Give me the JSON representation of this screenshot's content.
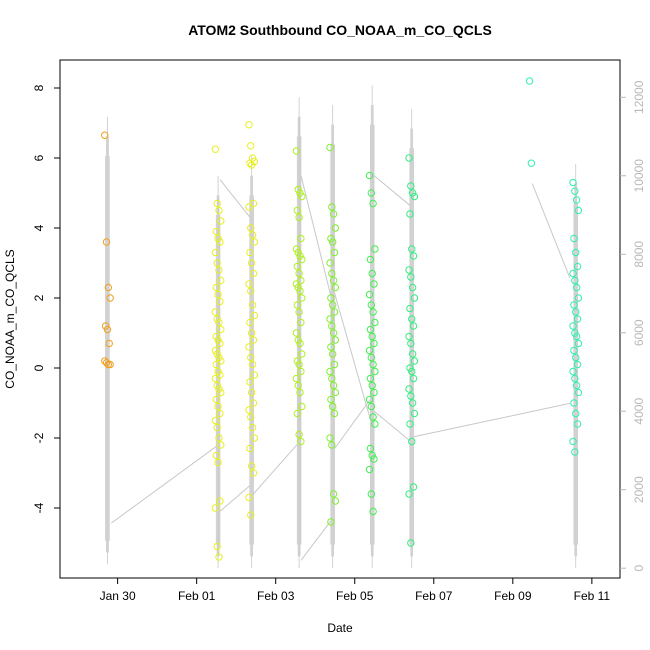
{
  "chart_data": {
    "type": "scatter",
    "title": "ATOM2 Southbound CO_NOAA_m_CO_QCLS",
    "xlabel": "Date",
    "ylabel": "CO_NOAA_m_CO_QCLS",
    "x_ticks": [
      "Jan 30",
      "Feb 01",
      "Feb 03",
      "Feb 05",
      "Feb 07",
      "Feb 09",
      "Feb 11"
    ],
    "y_ticks": [
      "-4",
      "-2",
      "0",
      "2",
      "4",
      "6",
      "8"
    ],
    "y_right_ticks": [
      "0",
      "2000",
      "4000",
      "6000",
      "8000",
      "10000",
      "12000"
    ],
    "xlim": [
      "Jan 28 13:00",
      "Feb 11 17:00"
    ],
    "ylim": [
      -6.0,
      8.8
    ],
    "y_right_lim": [
      -250,
      12950
    ],
    "point_colors": {
      "Jan 29": "#f0a020",
      "Feb 01": "#e8f020",
      "Feb 03": "#b0f020",
      "Feb 04": "#80f030",
      "Feb 05": "#40f050",
      "Feb 06": "#30f080",
      "Feb 10": "#30f0b0"
    },
    "line_color": "#c8c8c8",
    "points": [
      {
        "date": "Jan 29",
        "x": 1.2,
        "values": [
          6.65,
          3.6,
          2.3,
          2.0,
          1.2,
          1.1,
          0.7,
          0.2,
          0.15,
          0.1,
          0.1
        ]
      },
      {
        "date": "Feb 01",
        "x": 4.0,
        "values": [
          6.25,
          4.7,
          4.5,
          4.2,
          3.9,
          3.7,
          3.6,
          3.3,
          3.0,
          2.8,
          2.5,
          2.3,
          2.1,
          1.9,
          1.6,
          1.4,
          1.3,
          1.1,
          0.9,
          0.8,
          0.7,
          0.5,
          0.4,
          0.3,
          0.2,
          0.1,
          -0.1,
          -0.2,
          -0.3,
          -0.5,
          -0.6,
          -0.7,
          -0.9,
          -1.1,
          -1.3,
          -1.5,
          -1.7,
          -2.0,
          -2.2,
          -2.5,
          -2.7,
          -3.8,
          -4.0,
          -5.1,
          -5.4
        ]
      },
      {
        "date": "Feb 01",
        "x": 4.85,
        "values": [
          6.95,
          6.35,
          6.0,
          5.9,
          5.85,
          5.8,
          4.7,
          4.6,
          4.0,
          3.8,
          3.6,
          3.3,
          3.0,
          2.7,
          2.4,
          2.2,
          1.8,
          1.5,
          1.3,
          1.0,
          0.8,
          0.6,
          0.3,
          0.1,
          -0.2,
          -0.4,
          -0.7,
          -1.0,
          -1.2,
          -1.4,
          -1.7,
          -2.0,
          -2.3,
          -2.8,
          -3.0,
          -3.7,
          -4.2
        ]
      },
      {
        "date": "Feb 03",
        "x": 6.05,
        "values": [
          6.2,
          5.1,
          5.0,
          4.9,
          4.5,
          4.3,
          3.7,
          3.4,
          3.3,
          3.2,
          3.1,
          2.9,
          2.7,
          2.5,
          2.4,
          2.3,
          2.2,
          2.0,
          1.8,
          1.6,
          1.3,
          1.0,
          0.8,
          0.7,
          0.4,
          0.2,
          0.1,
          -0.1,
          -0.3,
          -0.5,
          -0.7,
          -1.1,
          -1.3,
          -1.9,
          -2.1
        ]
      },
      {
        "date": "Feb 04",
        "x": 6.9,
        "values": [
          6.3,
          4.6,
          4.4,
          4.0,
          3.7,
          3.6,
          3.3,
          3.0,
          2.7,
          2.5,
          2.3,
          2.0,
          1.8,
          1.6,
          1.4,
          1.2,
          1.0,
          0.8,
          0.6,
          0.4,
          0.1,
          -0.1,
          -0.3,
          -0.5,
          -0.7,
          -0.9,
          -1.1,
          -1.3,
          -2.0,
          -2.2,
          -3.6,
          -3.8,
          -4.4
        ]
      },
      {
        "date": "Feb 05",
        "x": 7.9,
        "values": [
          5.5,
          5.0,
          4.7,
          3.4,
          3.1,
          2.7,
          2.4,
          2.1,
          1.8,
          1.6,
          1.3,
          1.1,
          0.9,
          0.7,
          0.5,
          0.3,
          0.1,
          -0.1,
          -0.3,
          -0.5,
          -0.7,
          -0.9,
          -1.1,
          -1.4,
          -1.6,
          -2.3,
          -2.5,
          -2.6,
          -2.9,
          -3.6,
          -4.1
        ]
      },
      {
        "date": "Feb 06",
        "x": 8.9,
        "values": [
          6.0,
          5.2,
          5.0,
          4.9,
          4.4,
          3.4,
          3.2,
          2.8,
          2.6,
          2.3,
          2.0,
          1.7,
          1.4,
          1.2,
          0.9,
          0.7,
          0.4,
          0.2,
          0.0,
          -0.1,
          -0.3,
          -0.6,
          -0.8,
          -1.0,
          -1.3,
          -1.6,
          -2.1,
          -3.4,
          -3.6,
          -5.0
        ]
      },
      {
        "date": "Feb 10",
        "x": 11.95,
        "values": [
          8.2,
          5.85
        ]
      },
      {
        "date": "Feb 10",
        "x": 13.05,
        "values": [
          5.3,
          5.05,
          4.8,
          4.5,
          3.7,
          3.3,
          2.9,
          2.7,
          2.5,
          2.3,
          2.0,
          1.8,
          1.6,
          1.4,
          1.2,
          1.0,
          0.9,
          0.7,
          0.5,
          0.3,
          0.1,
          -0.1,
          -0.3,
          -0.5,
          -0.7,
          -1.0,
          -1.3,
          -1.6,
          -2.1,
          -2.4
        ]
      }
    ],
    "altitude_track": {
      "axis": "right",
      "columns": [
        {
          "x": 1.2,
          "min": 100,
          "max": 11500
        },
        {
          "x": 4.0,
          "min": 0,
          "max": 10000
        },
        {
          "x": 4.85,
          "min": 0,
          "max": 10500
        },
        {
          "x": 6.05,
          "min": 0,
          "max": 12000
        },
        {
          "x": 6.9,
          "min": 0,
          "max": 11800
        },
        {
          "x": 7.9,
          "min": 0,
          "max": 12300
        },
        {
          "x": 8.9,
          "min": 0,
          "max": 11700
        },
        {
          "x": 13.05,
          "min": 0,
          "max": 10300
        }
      ],
      "transits": [
        [
          [
            1.3,
            1150
          ],
          [
            3.95,
            3100
          ]
        ],
        [
          [
            4.05,
            1450
          ],
          [
            4.8,
            2100
          ]
        ],
        [
          [
            4.05,
            9900
          ],
          [
            4.8,
            8950
          ]
        ],
        [
          [
            4.9,
            1900
          ],
          [
            6.0,
            3150
          ]
        ],
        [
          [
            6.1,
            10000
          ],
          [
            6.85,
            6950
          ]
        ],
        [
          [
            6.95,
            3050
          ],
          [
            7.85,
            4300
          ]
        ],
        [
          [
            6.95,
            7000
          ],
          [
            7.85,
            3800
          ]
        ],
        [
          [
            6.1,
            200
          ],
          [
            6.85,
            1200
          ]
        ],
        [
          [
            7.95,
            10000
          ],
          [
            8.85,
            9250
          ]
        ],
        [
          [
            7.95,
            4000
          ],
          [
            8.85,
            3250
          ]
        ],
        [
          [
            8.95,
            3350
          ],
          [
            12.9,
            4200
          ]
        ],
        [
          [
            11.95,
            9800
          ],
          [
            12.9,
            7400
          ]
        ]
      ]
    }
  }
}
